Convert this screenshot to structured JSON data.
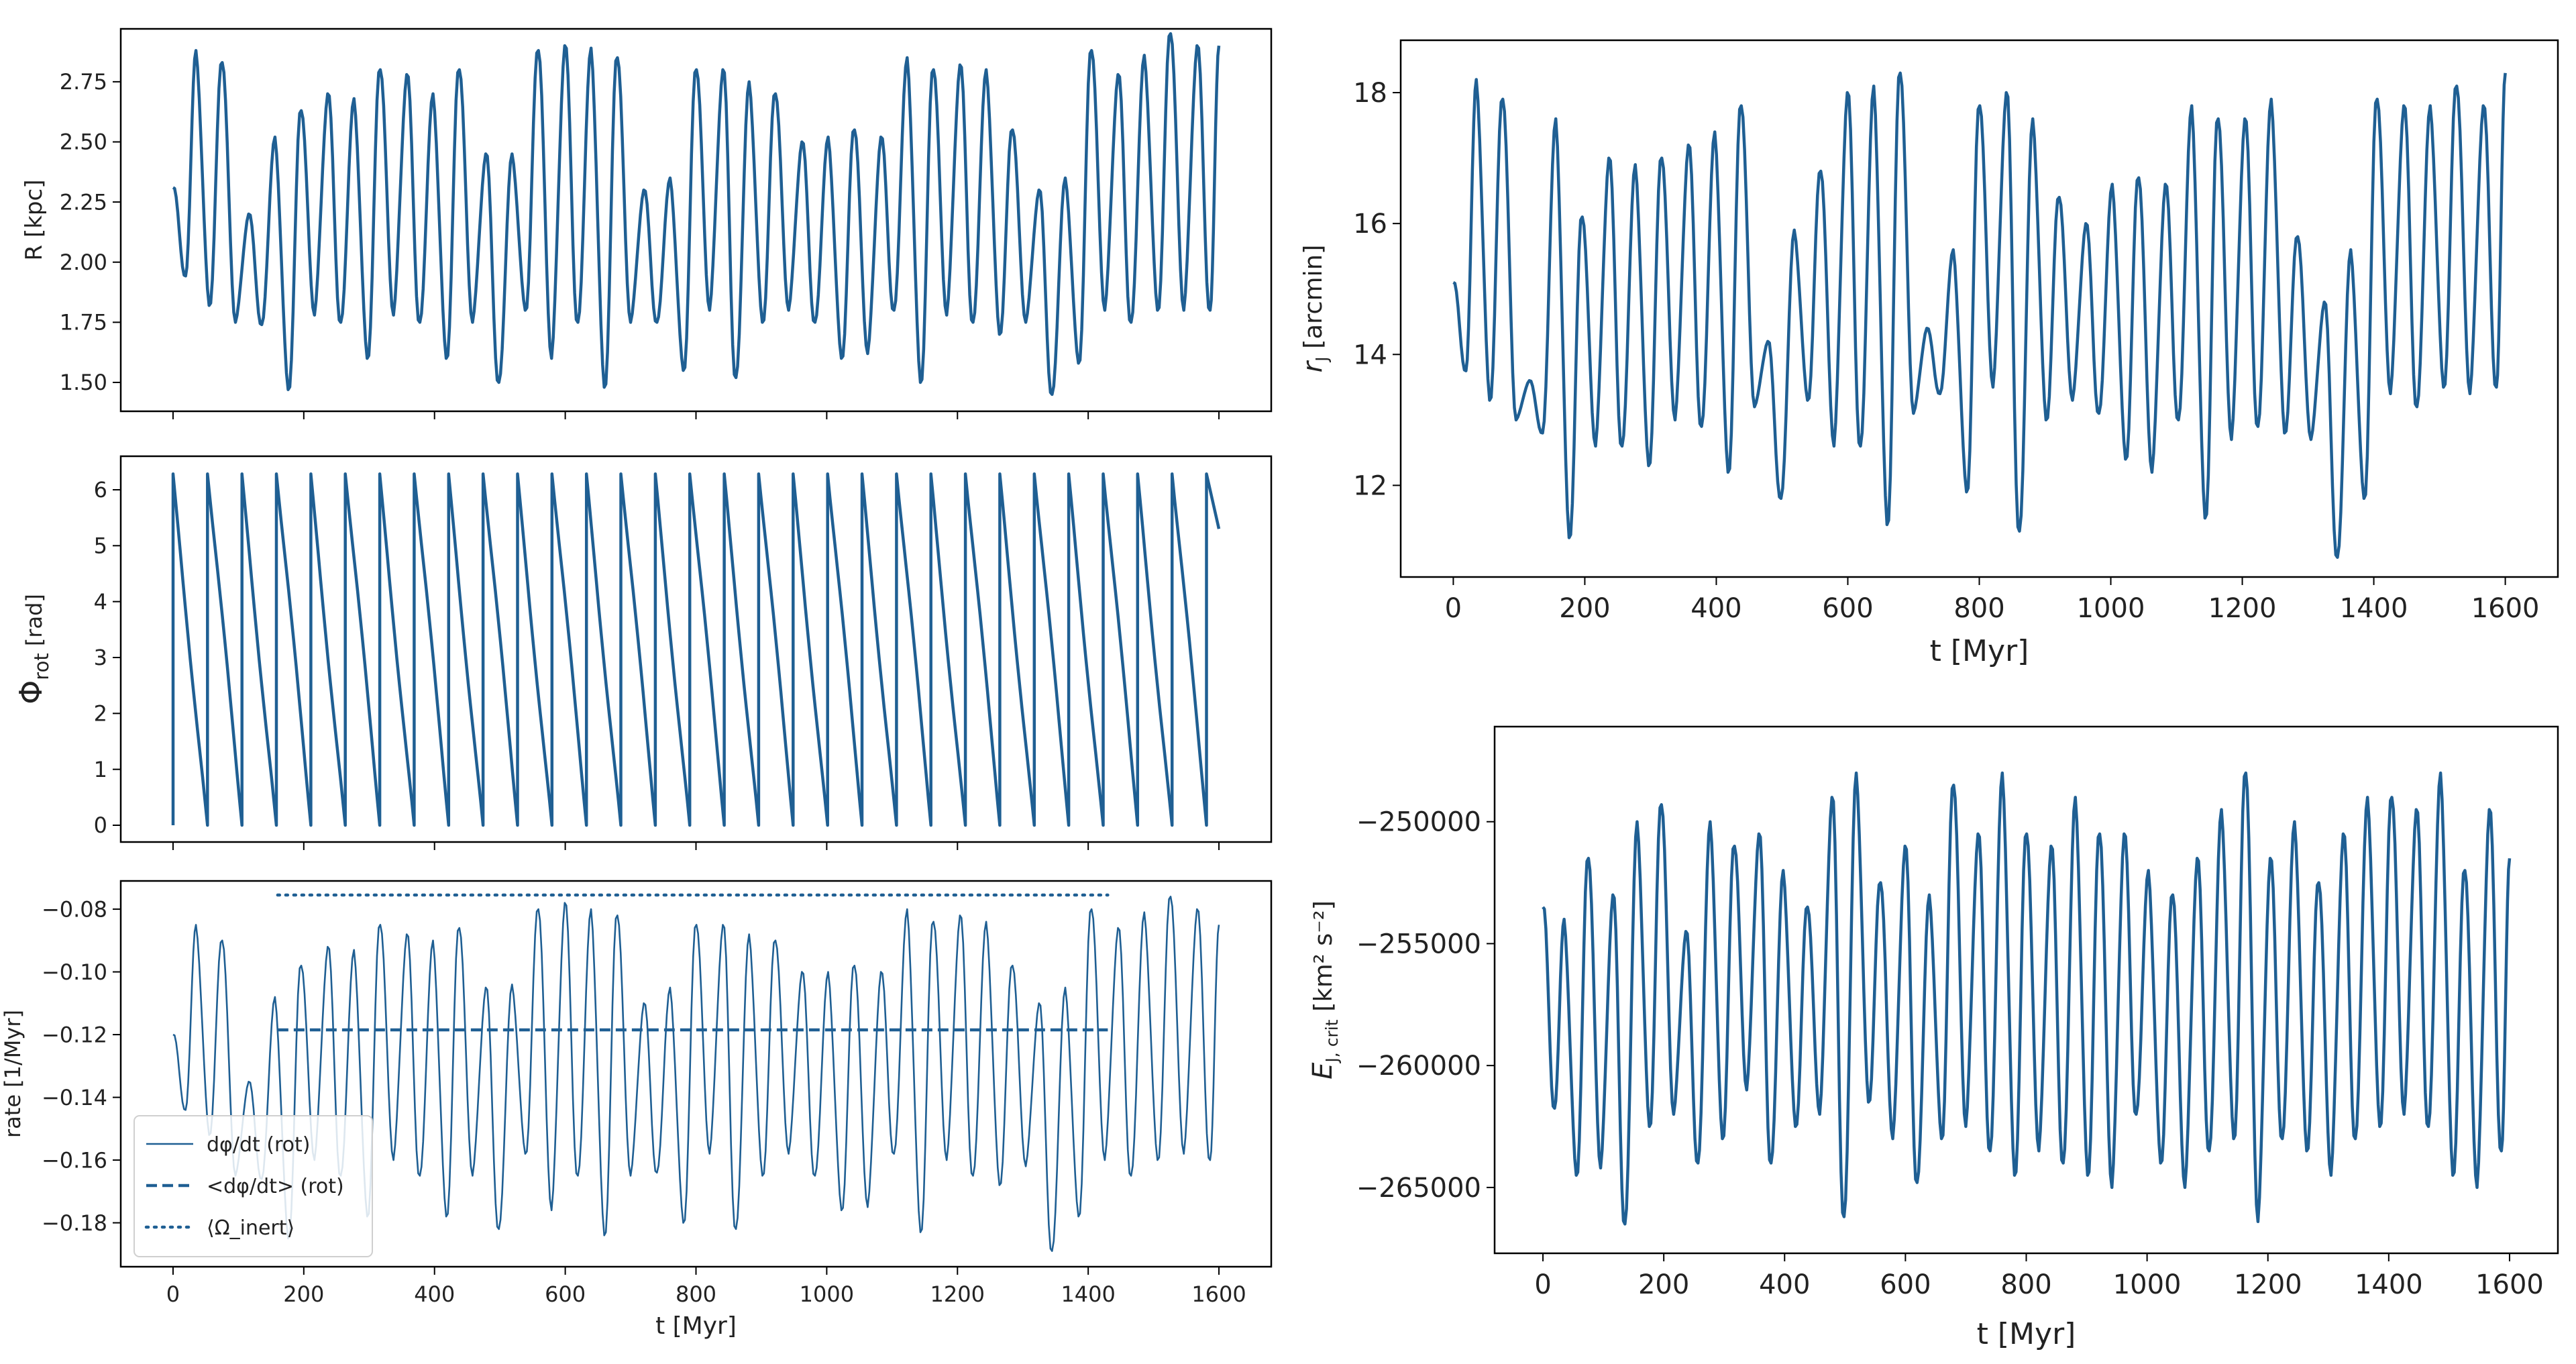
{
  "figure_color": "#1f5f93",
  "chart_data": [
    {
      "id": "R",
      "type": "line",
      "ylabel": "R [kpc]",
      "xlabel": "",
      "xlim": [
        -80,
        1680
      ],
      "ylim": [
        1.38,
        2.97
      ],
      "xticks": [
        0,
        200,
        400,
        600,
        800,
        1000,
        1200,
        1400,
        1600
      ],
      "xtick_labels_shown": false,
      "yticks": [
        1.5,
        1.75,
        2.0,
        2.25,
        2.5,
        2.75
      ],
      "ytick_labels": [
        "1.50",
        "1.75",
        "2.00",
        "2.25",
        "2.50",
        "2.75"
      ],
      "t_max": 1600,
      "series": [
        {
          "name": "R",
          "start": 2.31,
          "period": 40.3,
          "t_first_peak": 35,
          "peaks": [
            2.88,
            2.83,
            2.2,
            2.52,
            2.63,
            2.7,
            2.68,
            2.8,
            2.78,
            2.7,
            2.8,
            2.45,
            2.45,
            2.88,
            2.9,
            2.89,
            2.85,
            2.3,
            2.35,
            2.8,
            2.8,
            2.75,
            2.7,
            2.5,
            2.52,
            2.55,
            2.52,
            2.85,
            2.8,
            2.82,
            2.8,
            2.55,
            2.3,
            2.35,
            2.88,
            2.78,
            2.86,
            2.95,
            2.9,
            2.9
          ],
          "troughs": [
            1.82,
            1.75,
            1.74,
            1.47,
            1.78,
            1.75,
            1.6,
            1.78,
            1.75,
            1.6,
            1.75,
            1.5,
            1.8,
            1.6,
            1.75,
            1.48,
            1.75,
            1.75,
            1.55,
            1.8,
            1.52,
            1.75,
            1.8,
            1.75,
            1.6,
            1.62,
            1.8,
            1.5,
            1.78,
            1.75,
            1.7,
            1.75,
            1.45,
            1.58,
            1.8,
            1.75,
            1.8,
            1.8,
            1.8,
            1.8
          ]
        }
      ]
    },
    {
      "id": "phi",
      "type": "line",
      "ylabel": "Φ",
      "ylabel_sub": "rot",
      "ylabel_unit": "[rad]",
      "xlabel": "",
      "xlim": [
        -80,
        1680
      ],
      "ylim": [
        -0.3,
        6.6
      ],
      "xticks": [
        0,
        200,
        400,
        600,
        800,
        1000,
        1200,
        1400,
        1600
      ],
      "xtick_labels_shown": false,
      "yticks": [
        0,
        1,
        2,
        3,
        4,
        5,
        6
      ],
      "ytick_labels": [
        "0",
        "1",
        "2",
        "3",
        "4",
        "5",
        "6"
      ],
      "t_max": 1600,
      "series": [
        {
          "name": "Φ_rot",
          "wrap_period": 52.7,
          "wrap_low": 0,
          "wrap_high": 6.283,
          "t_first_wrap": 0,
          "end_value": 5.3
        }
      ]
    },
    {
      "id": "rate",
      "type": "line",
      "ylabel": "rate [1/Myr]",
      "xlabel": "t [Myr]",
      "xlim": [
        -80,
        1680
      ],
      "ylim": [
        -0.194,
        -0.071
      ],
      "xticks": [
        0,
        200,
        400,
        600,
        800,
        1000,
        1200,
        1400,
        1600
      ],
      "xtick_labels": [
        "0",
        "200",
        "400",
        "600",
        "800",
        "1000",
        "1200",
        "1400",
        "1600"
      ],
      "yticks": [
        -0.18,
        -0.16,
        -0.14,
        -0.12,
        -0.1,
        -0.08
      ],
      "ytick_labels": [
        "−0.18",
        "−0.16",
        "−0.14",
        "−0.12",
        "−0.10",
        "−0.08"
      ],
      "t_max": 1600,
      "legend": {
        "placement": "lower-left",
        "entries": [
          {
            "label": "dφ/dt (rot)",
            "style": "solid"
          },
          {
            "label": "<dφ/dt> (rot)",
            "style": "dashed"
          },
          {
            "label": "⟨Ω_inert⟩",
            "style": "dotted"
          }
        ]
      },
      "series": [
        {
          "name": "dφ/dt (rot)",
          "style": "solid",
          "start": -0.12,
          "period": 40.3,
          "t_first_peak": 35,
          "peaks": [
            -0.085,
            -0.09,
            -0.135,
            -0.108,
            -0.098,
            -0.092,
            -0.093,
            -0.085,
            -0.088,
            -0.09,
            -0.086,
            -0.105,
            -0.104,
            -0.08,
            -0.078,
            -0.08,
            -0.082,
            -0.11,
            -0.105,
            -0.085,
            -0.085,
            -0.088,
            -0.09,
            -0.1,
            -0.1,
            -0.098,
            -0.1,
            -0.08,
            -0.084,
            -0.082,
            -0.084,
            -0.098,
            -0.11,
            -0.105,
            -0.08,
            -0.086,
            -0.081,
            -0.076,
            -0.08,
            -0.085
          ],
          "troughs": [
            -0.152,
            -0.165,
            -0.166,
            -0.185,
            -0.16,
            -0.165,
            -0.178,
            -0.16,
            -0.165,
            -0.178,
            -0.165,
            -0.182,
            -0.158,
            -0.176,
            -0.165,
            -0.184,
            -0.165,
            -0.164,
            -0.18,
            -0.158,
            -0.182,
            -0.165,
            -0.158,
            -0.165,
            -0.176,
            -0.175,
            -0.158,
            -0.183,
            -0.16,
            -0.165,
            -0.168,
            -0.162,
            -0.189,
            -0.178,
            -0.16,
            -0.165,
            -0.16,
            -0.158,
            -0.16,
            -0.158
          ]
        },
        {
          "name": "<dφ/dt> (rot)",
          "style": "dashed",
          "x_range": [
            160,
            1430
          ],
          "value": -0.1185
        },
        {
          "name": "⟨Ω_inert⟩",
          "style": "dotted",
          "x_range": [
            160,
            1430
          ],
          "value": -0.0755
        }
      ]
    },
    {
      "id": "rJ",
      "type": "line",
      "ylabel": "r",
      "ylabel_sub": "J",
      "ylabel_unit": "[arcmin]",
      "xlabel": "t [Myr]",
      "xlim": [
        -80,
        1680
      ],
      "ylim": [
        10.6,
        18.8
      ],
      "xticks": [
        0,
        200,
        400,
        600,
        800,
        1000,
        1200,
        1400,
        1600
      ],
      "xtick_labels": [
        "0",
        "200",
        "400",
        "600",
        "800",
        "1000",
        "1200",
        "1400",
        "1600"
      ],
      "yticks": [
        12,
        14,
        16,
        18
      ],
      "ytick_labels": [
        "12",
        "14",
        "16",
        "18"
      ],
      "t_max": 1600,
      "series": [
        {
          "name": "r_J",
          "start": 15.1,
          "period": 40.3,
          "t_first_peak": 35,
          "peaks": [
            18.2,
            17.9,
            13.6,
            17.6,
            16.1,
            17.0,
            16.9,
            17.0,
            17.2,
            17.4,
            17.8,
            14.2,
            15.9,
            16.8,
            18.0,
            18.1,
            18.3,
            14.4,
            15.6,
            17.8,
            18.0,
            17.6,
            16.4,
            16.0,
            16.6,
            16.7,
            16.6,
            17.8,
            17.6,
            17.6,
            17.9,
            15.8,
            14.8,
            15.6,
            17.9,
            17.8,
            17.8,
            18.1,
            17.8,
            18.3
          ],
          "troughs": [
            13.3,
            13.0,
            12.8,
            11.2,
            12.6,
            12.6,
            12.3,
            13.0,
            12.9,
            12.2,
            13.2,
            11.8,
            13.3,
            12.6,
            12.6,
            11.4,
            13.1,
            13.4,
            11.9,
            13.5,
            11.3,
            13.0,
            13.3,
            13.1,
            12.4,
            12.2,
            13.0,
            11.5,
            12.7,
            12.9,
            12.8,
            12.7,
            10.9,
            11.8,
            13.4,
            13.2,
            13.5,
            13.4,
            13.5,
            13.5
          ]
        }
      ]
    },
    {
      "id": "EJ",
      "type": "line",
      "ylabel": "E",
      "ylabel_sub": "J, crit",
      "ylabel_unit": "[km² s⁻²]",
      "xlabel": "t [Myr]",
      "xlim": [
        -80,
        1680
      ],
      "ylim": [
        -267700,
        -246100
      ],
      "xticks": [
        0,
        200,
        400,
        600,
        800,
        1000,
        1200,
        1400,
        1600
      ],
      "xtick_labels": [
        "0",
        "200",
        "400",
        "600",
        "800",
        "1000",
        "1200",
        "1400",
        "1600"
      ],
      "yticks": [
        -265000,
        -260000,
        -255000,
        -250000
      ],
      "ytick_labels": [
        "−265000",
        "−260000",
        "−255000",
        "−250000"
      ],
      "t_max": 1600,
      "series": [
        {
          "name": "E_J,crit",
          "start": -253500,
          "period": 40.3,
          "t_first_peak": 35,
          "peaks": [
            -254000,
            -251500,
            -253000,
            -250000,
            -249300,
            -254500,
            -250000,
            -251000,
            -250500,
            -252000,
            -253500,
            -249000,
            -248000,
            -252500,
            -251000,
            -253000,
            -248500,
            -250500,
            -248000,
            -250500,
            -251000,
            -249000,
            -250500,
            -250500,
            -252000,
            -253000,
            -251500,
            -249500,
            -248000,
            -251500,
            -250000,
            -252500,
            -250500,
            -249000,
            -249000,
            -249500,
            -248000,
            -252000,
            -249500,
            -251500
          ],
          "troughs": [
            -264500,
            -264200,
            -266500,
            -262500,
            -262000,
            -264000,
            -263000,
            -261000,
            -264000,
            -262500,
            -262000,
            -266200,
            -261500,
            -263000,
            -264800,
            -263000,
            -262500,
            -263500,
            -264500,
            -263500,
            -264000,
            -264500,
            -265000,
            -262000,
            -264000,
            -265000,
            -263500,
            -263000,
            -266400,
            -263000,
            -263500,
            -264500,
            -263000,
            -262500,
            -262000,
            -262500,
            -264500,
            -265000,
            -263500,
            -265000
          ]
        }
      ]
    }
  ]
}
